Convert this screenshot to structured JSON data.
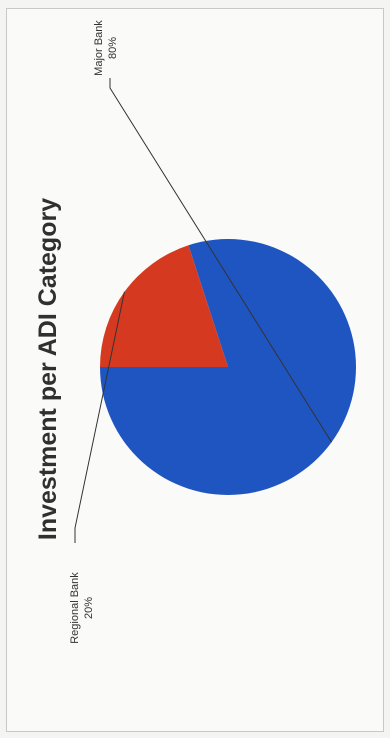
{
  "chart_data": {
    "type": "pie",
    "title": "Investment per ADI Category",
    "slices": [
      {
        "label": "Major Bank",
        "value": 80,
        "value_label": "80%",
        "color": "#1f55c0"
      },
      {
        "label": "Regional Bank",
        "value": 20,
        "value_label": "20%",
        "color": "#d53a20"
      }
    ],
    "orientation": "rotated-90-ccw"
  }
}
